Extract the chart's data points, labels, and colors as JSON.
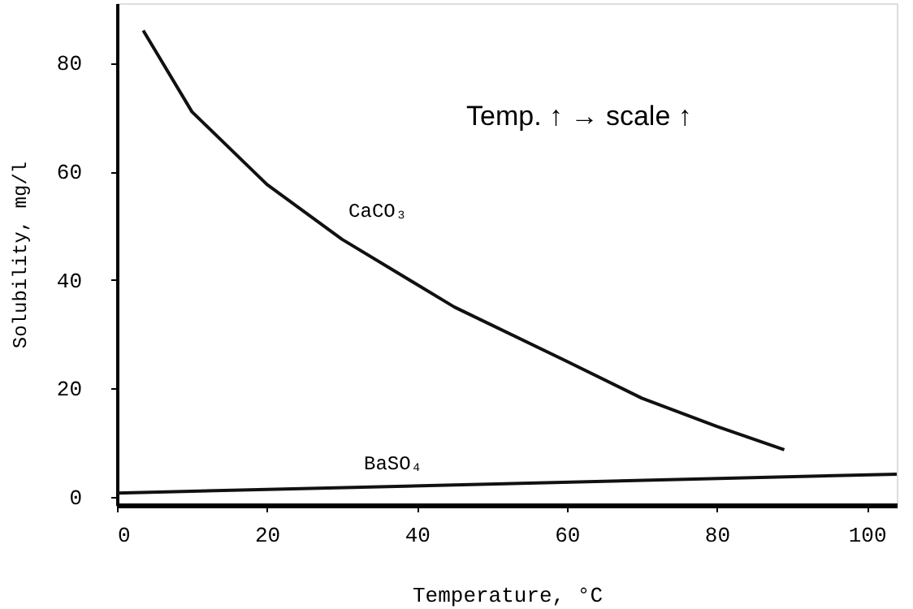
{
  "chart_data": {
    "type": "line",
    "xlabel": "Temperature, °C",
    "ylabel": "Solubility, mg/l",
    "annotations": [
      "Temp. ↑ → scale ↑"
    ],
    "xlim": [
      0,
      104
    ],
    "ylim": [
      -1.5,
      91
    ],
    "xticks": [
      0,
      20,
      40,
      60,
      80,
      100
    ],
    "yticks": [
      0,
      20,
      40,
      60,
      80
    ],
    "grid": false,
    "marker": "none",
    "line_style": "solid",
    "series": [
      {
        "name": "CaCO₃",
        "color": "#111111",
        "x": [
          3.5,
          10,
          20,
          30,
          39,
          45,
          60,
          70,
          80,
          89
        ],
        "values": [
          86,
          71,
          57.6,
          47.5,
          40,
          35,
          25,
          18.2,
          13,
          8.7
        ]
      },
      {
        "name": "BaSO₄",
        "color": "#111111",
        "x": [
          0,
          104
        ],
        "values": [
          0.7,
          4.2
        ]
      }
    ]
  }
}
